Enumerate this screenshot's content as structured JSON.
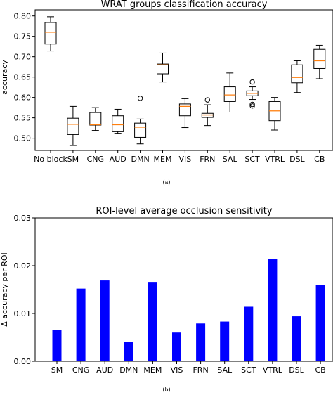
{
  "chart_data": [
    {
      "type": "box",
      "title": "WRAT groups classification accuracy",
      "ylabel": "accuracy",
      "caption": "(a)",
      "ylim": [
        0.47,
        0.815
      ],
      "yticks": [
        "0.50",
        "0.55",
        "0.60",
        "0.65",
        "0.70",
        "0.75",
        "0.80"
      ],
      "categories": [
        "No block",
        "SM",
        "CNG",
        "AUD",
        "DMN",
        "MEM",
        "VIS",
        "FRN",
        "SAL",
        "SCT",
        "VTRL",
        "DSL",
        "CB"
      ],
      "boxes": [
        {
          "min": 0.714,
          "q1": 0.731,
          "median": 0.76,
          "q3": 0.784,
          "max": 0.798,
          "outliers": []
        },
        {
          "min": 0.482,
          "q1": 0.509,
          "median": 0.534,
          "q3": 0.549,
          "max": 0.578,
          "outliers": []
        },
        {
          "min": 0.519,
          "q1": 0.532,
          "median": 0.533,
          "q3": 0.563,
          "max": 0.575,
          "outliers": []
        },
        {
          "min": 0.512,
          "q1": 0.516,
          "median": 0.533,
          "q3": 0.555,
          "max": 0.571,
          "outliers": []
        },
        {
          "min": 0.486,
          "q1": 0.502,
          "median": 0.527,
          "q3": 0.537,
          "max": 0.547,
          "outliers": [
            0.598
          ]
        },
        {
          "min": 0.638,
          "q1": 0.658,
          "median": 0.68,
          "q3": 0.682,
          "max": 0.709,
          "outliers": []
        },
        {
          "min": 0.526,
          "q1": 0.555,
          "median": 0.578,
          "q3": 0.584,
          "max": 0.597,
          "outliers": []
        },
        {
          "min": 0.531,
          "q1": 0.551,
          "median": 0.557,
          "q3": 0.561,
          "max": 0.582,
          "outliers": [
            0.594
          ]
        },
        {
          "min": 0.564,
          "q1": 0.59,
          "median": 0.606,
          "q3": 0.626,
          "max": 0.66,
          "outliers": []
        },
        {
          "min": 0.595,
          "q1": 0.604,
          "median": 0.61,
          "q3": 0.616,
          "max": 0.626,
          "outliers": [
            0.638,
            0.583,
            0.579
          ]
        },
        {
          "min": 0.52,
          "q1": 0.543,
          "median": 0.567,
          "q3": 0.59,
          "max": 0.6,
          "outliers": []
        },
        {
          "min": 0.612,
          "q1": 0.636,
          "median": 0.649,
          "q3": 0.68,
          "max": 0.69,
          "outliers": []
        },
        {
          "min": 0.646,
          "q1": 0.671,
          "median": 0.69,
          "q3": 0.718,
          "max": 0.728,
          "outliers": []
        }
      ]
    },
    {
      "type": "bar",
      "title": "ROI-level average occlusion sensitivity",
      "ylabel": "Δ accuracy per ROI",
      "caption": "(b)",
      "ylim": [
        0,
        0.03
      ],
      "yticks": [
        "0.00",
        "0.01",
        "0.02",
        "0.03"
      ],
      "categories": [
        "SM",
        "CNG",
        "AUD",
        "DMN",
        "MEM",
        "VIS",
        "FRN",
        "SAL",
        "SCT",
        "VTRL",
        "DSL",
        "CB"
      ],
      "values": [
        0.0065,
        0.0152,
        0.0169,
        0.004,
        0.0166,
        0.006,
        0.0079,
        0.0083,
        0.0114,
        0.0214,
        0.0094,
        0.016
      ],
      "bar_color": "#0000ff"
    }
  ]
}
